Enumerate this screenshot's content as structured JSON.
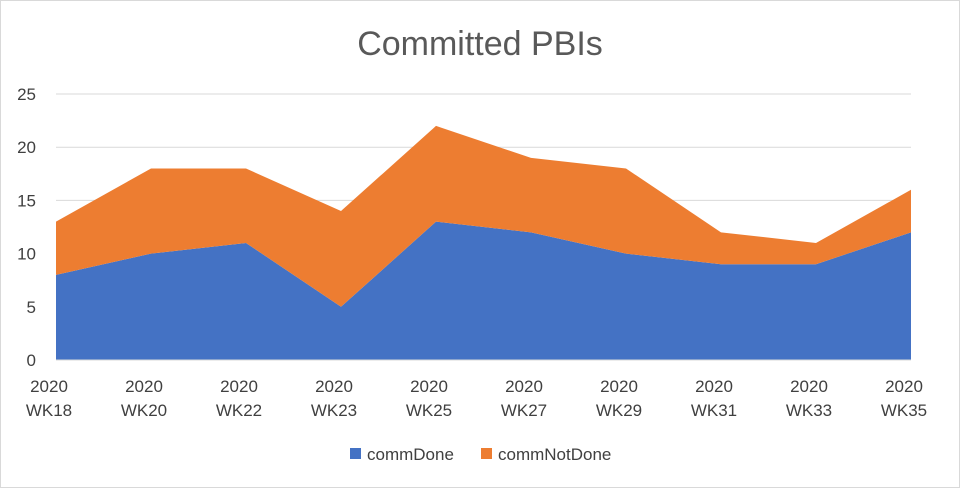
{
  "chart_data": {
    "type": "area",
    "stacked": true,
    "title": "Committed PBIs",
    "xlabel": "",
    "ylabel": "",
    "categories": [
      [
        "2020",
        "WK18"
      ],
      [
        "2020",
        "WK20"
      ],
      [
        "2020",
        "WK22"
      ],
      [
        "2020",
        "WK23"
      ],
      [
        "2020",
        "WK25"
      ],
      [
        "2020",
        "WK27"
      ],
      [
        "2020",
        "WK29"
      ],
      [
        "2020",
        "WK31"
      ],
      [
        "2020",
        "WK33"
      ],
      [
        "2020",
        "WK35"
      ]
    ],
    "ylim": [
      0,
      25
    ],
    "yticks": [
      "0",
      "5",
      "10",
      "15",
      "20",
      "25"
    ],
    "grid": true,
    "legend_position": "bottom",
    "series": [
      {
        "name": "commDone",
        "color": "#4472C4",
        "values": [
          8,
          10,
          11,
          5,
          13,
          12,
          10,
          9,
          9,
          12
        ]
      },
      {
        "name": "commNotDone",
        "color": "#ED7D31",
        "values": [
          5,
          8,
          7,
          9,
          9,
          7,
          8,
          3,
          2,
          4
        ]
      }
    ]
  }
}
